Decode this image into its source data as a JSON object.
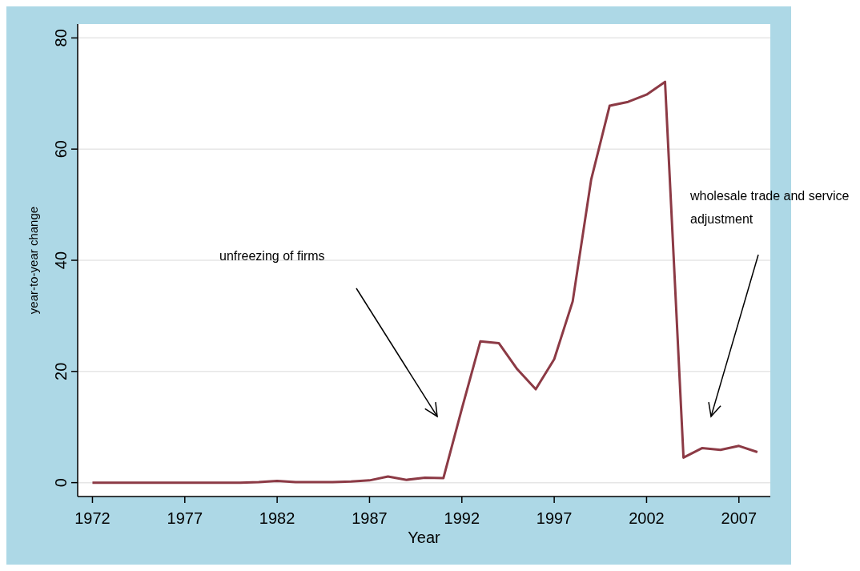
{
  "chart_data": {
    "type": "line",
    "xlabel": "Year",
    "ylabel": "year-to-year change",
    "x": [
      1972,
      1973,
      1974,
      1975,
      1976,
      1977,
      1978,
      1979,
      1980,
      1981,
      1982,
      1983,
      1984,
      1985,
      1986,
      1987,
      1988,
      1989,
      1990,
      1991,
      1992,
      1993,
      1994,
      1995,
      1996,
      1997,
      1998,
      1999,
      2000,
      2001,
      2002,
      2003,
      2004,
      2005,
      2006,
      2007,
      2008
    ],
    "series": [
      {
        "color": "#8c3a45",
        "values": [
          0,
          0,
          0,
          0,
          0,
          0,
          0,
          0,
          0,
          0.1,
          0.3,
          0.1,
          0.1,
          0.1,
          0.2,
          0.4,
          1.1,
          0.5,
          0.9,
          0.8,
          13.3,
          25.4,
          25.1,
          20.4,
          16.8,
          22.2,
          32.6,
          54.5,
          67.8,
          68.5,
          69.8,
          72.1,
          4.5,
          6.2,
          5.9,
          6.6,
          5.5
        ]
      }
    ],
    "xlim": [
      1971.2,
      2008.7
    ],
    "xticks": [
      1972,
      1977,
      1982,
      1987,
      1992,
      1997,
      2002,
      2007
    ],
    "ylim": [
      -2.5,
      82.5
    ],
    "yticks": [
      0,
      20,
      40,
      60,
      80
    ],
    "grid": "y",
    "marker": "none",
    "line_style": "solid",
    "annotations": [
      "unfreezing of firms",
      "wholesale trade and service adjustment"
    ]
  }
}
